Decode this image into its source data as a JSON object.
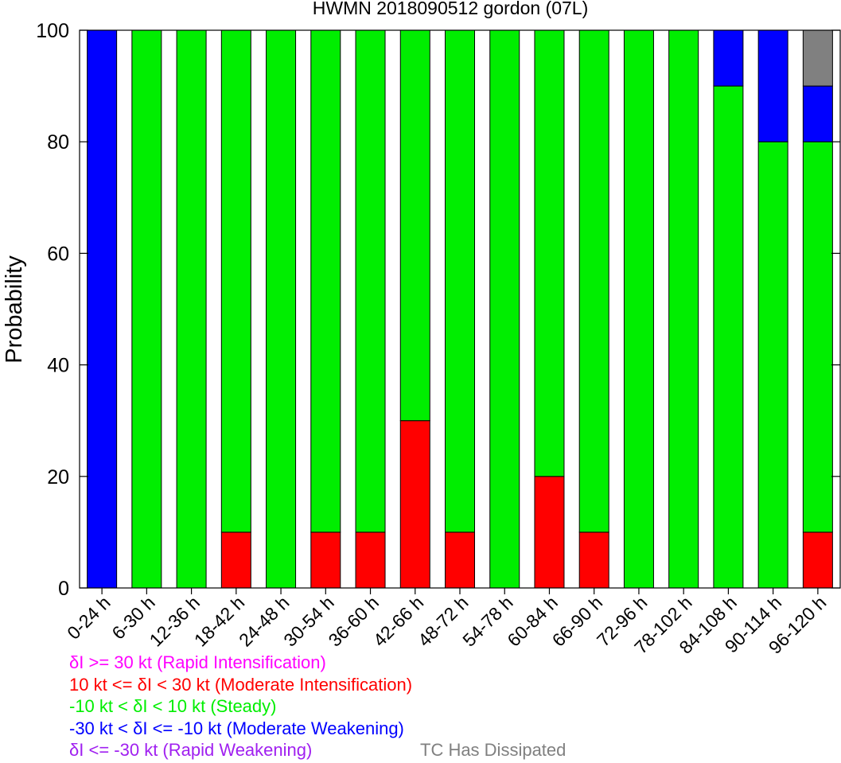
{
  "chart_data": {
    "type": "bar",
    "stacked": true,
    "title": "HWMN 2018090512 gordon (07L)",
    "ylabel": "Probability",
    "xlabel": "",
    "ylim": [
      0,
      100
    ],
    "yticks": [
      0,
      20,
      40,
      60,
      80,
      100
    ],
    "grid": false,
    "categories": [
      "0-24 h",
      "6-30 h",
      "12-36 h",
      "18-42 h",
      "24-48 h",
      "30-54 h",
      "36-60 h",
      "42-66 h",
      "48-72 h",
      "54-78 h",
      "60-84 h",
      "66-90 h",
      "72-96 h",
      "78-102 h",
      "84-108 h",
      "90-114 h",
      "96-120 h"
    ],
    "series": [
      {
        "key": "ri",
        "color": "#ff00ff",
        "values": [
          0,
          0,
          0,
          0,
          0,
          0,
          0,
          0,
          0,
          0,
          0,
          0,
          0,
          0,
          0,
          0,
          0
        ]
      },
      {
        "key": "mi",
        "color": "#ff0000",
        "values": [
          0,
          0,
          0,
          10,
          0,
          10,
          10,
          30,
          10,
          0,
          20,
          10,
          0,
          0,
          0,
          0,
          10
        ]
      },
      {
        "key": "steady",
        "color": "#00ee00",
        "values": [
          0,
          100,
          100,
          90,
          100,
          90,
          90,
          70,
          90,
          100,
          80,
          90,
          100,
          100,
          90,
          80,
          70
        ]
      },
      {
        "key": "mw",
        "color": "#0000ff",
        "values": [
          100,
          0,
          0,
          0,
          0,
          0,
          0,
          0,
          0,
          0,
          0,
          0,
          0,
          0,
          10,
          20,
          10
        ]
      },
      {
        "key": "rw",
        "color": "#a020f0",
        "values": [
          0,
          0,
          0,
          0,
          0,
          0,
          0,
          0,
          0,
          0,
          0,
          0,
          0,
          0,
          0,
          0,
          0
        ]
      },
      {
        "key": "dissipated",
        "color": "#808080",
        "values": [
          0,
          0,
          0,
          0,
          0,
          0,
          0,
          0,
          0,
          0,
          0,
          0,
          0,
          0,
          0,
          0,
          10
        ]
      }
    ],
    "legend": [
      {
        "text": "δI >= 30 kt (Rapid Intensification)",
        "color": "#ff00ff"
      },
      {
        "text": "10 kt <= δI < 30 kt (Moderate Intensification)",
        "color": "#ff0000"
      },
      {
        "text": "-10 kt < δI < 10 kt (Steady)",
        "color": "#00ee00"
      },
      {
        "text": "-30 kt < δI <= -10 kt (Moderate Weakening)",
        "color": "#0000ff"
      },
      {
        "text": "δI <= -30 kt (Rapid Weakening)",
        "color": "#a020f0"
      },
      {
        "text": "TC Has Dissipated",
        "color": "#808080"
      }
    ]
  }
}
